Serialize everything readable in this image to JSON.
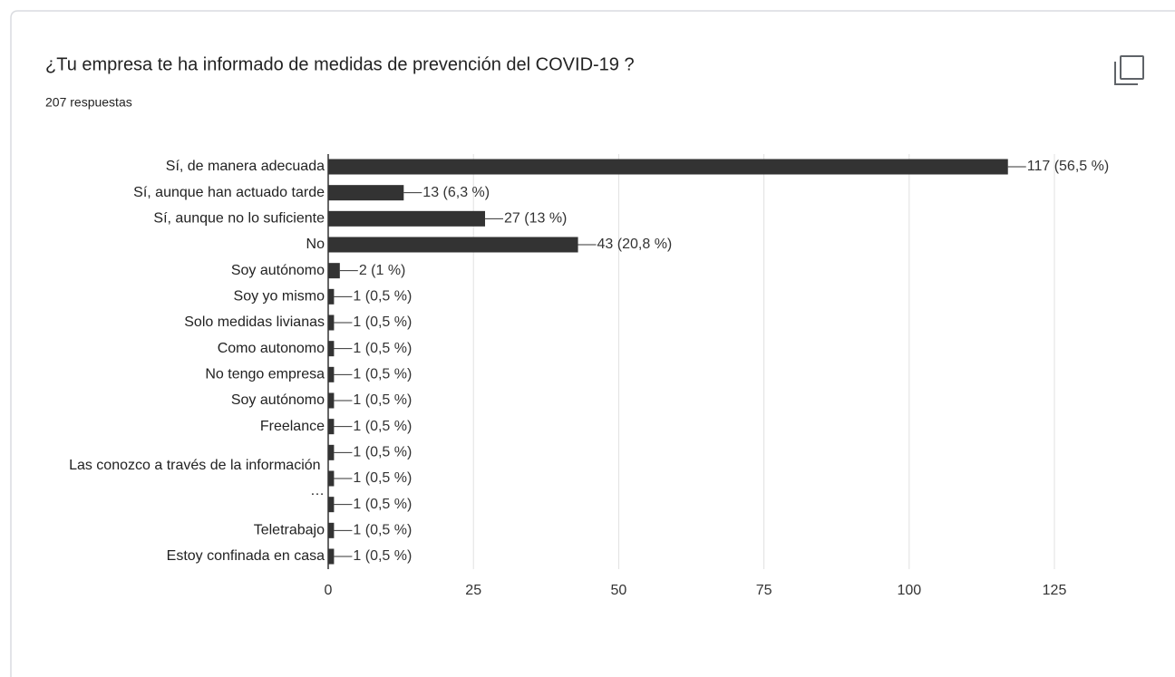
{
  "title": "¿Tu empresa te ha informado de medidas de prevención del COVID-19 ?",
  "subtitle": "207 respuestas",
  "chart_data": {
    "type": "barh",
    "categories": [
      "Sí, de manera adecuada",
      "Sí, aunque han actuado tarde",
      "Sí, aunque no lo suficiente",
      "No",
      "Soy autónomo",
      "Soy yo mismo",
      "Solo medidas livianas",
      "Como autonomo",
      "No tengo empresa",
      "Soy autónomo",
      "Freelance",
      null,
      "Las conozco a través de la información …",
      null,
      "Teletrabajo",
      "Estoy confinada en casa"
    ],
    "values": [
      117,
      13,
      27,
      43,
      2,
      1,
      1,
      1,
      1,
      1,
      1,
      1,
      1,
      1,
      1,
      1
    ],
    "value_labels": [
      "117 (56,5 %)",
      "13 (6,3 %)",
      "27 (13 %)",
      "43 (20,8 %)",
      "2 (1 %)",
      "1 (0,5 %)",
      "1 (0,5 %)",
      "1 (0,5 %)",
      "1 (0,5 %)",
      "1 (0,5 %)",
      "1 (0,5 %)",
      "1 (0,5 %)",
      "1 (0,5 %)",
      "1 (0,5 %)",
      "1 (0,5 %)",
      "1 (0,5 %)"
    ],
    "color": "#333333",
    "xlim": [
      0,
      125
    ],
    "xticks": [
      0,
      25,
      50,
      75,
      100,
      125
    ],
    "grid": true
  }
}
